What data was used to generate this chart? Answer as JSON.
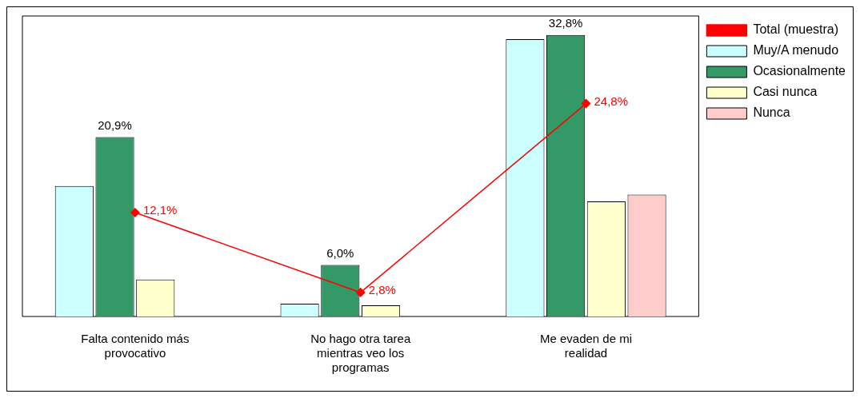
{
  "chart_data": {
    "type": "bar",
    "categories": [
      "Falta contenido más provocativo",
      "No hago otra tarea mientras veo los programas",
      "Me evaden de mi realidad"
    ],
    "series": [
      {
        "name": "Muy/A menudo",
        "color": "#ccffff",
        "values": [
          15.2,
          1.5,
          32.3
        ]
      },
      {
        "name": "Ocasionalmente",
        "color": "#339966",
        "values": [
          20.9,
          6.0,
          32.8
        ],
        "value_labels": [
          "20,9%",
          "6,0%",
          "32,8%"
        ]
      },
      {
        "name": "Casi nunca",
        "color": "#ffffcc",
        "values": [
          4.3,
          1.3,
          13.4
        ]
      },
      {
        "name": "Nunca",
        "color": "#ffcccc",
        "values": [
          null,
          null,
          14.2
        ]
      },
      {
        "name": "Total (muestra)",
        "type": "line",
        "color": "#ff0000",
        "values": [
          12.1,
          2.8,
          24.8
        ],
        "value_labels": [
          "12,1%",
          "2,8%",
          "24,8%"
        ],
        "marker": "diamond"
      }
    ],
    "ylim": [
      0,
      35
    ],
    "tick_labels": "x",
    "grid": false,
    "legend": "right"
  }
}
